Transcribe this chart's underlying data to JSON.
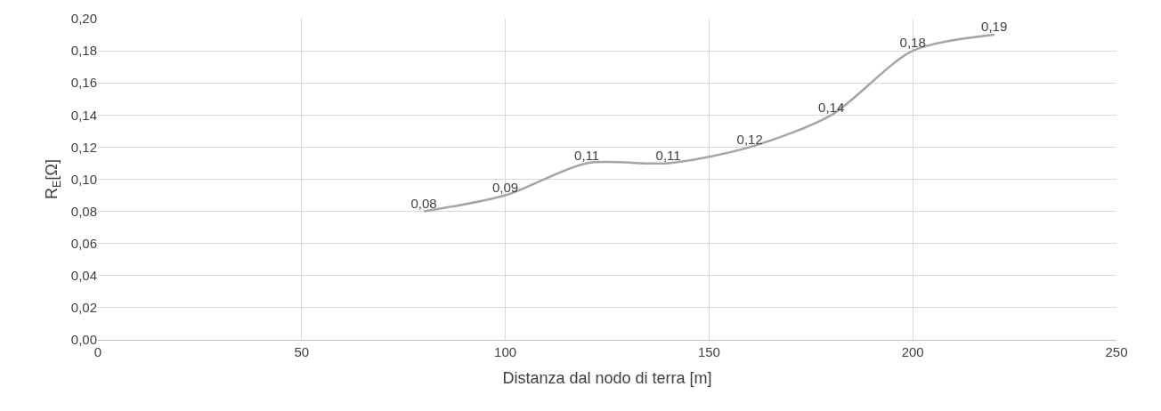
{
  "chart_data": {
    "type": "line",
    "xlabel": "Distanza dal nodo di terra [m]",
    "ylabel": "R$_{E}$[Ω]",
    "x": [
      80,
      100,
      120,
      140,
      160,
      180,
      200,
      220
    ],
    "series": [
      {
        "color": "#a5a5a5",
        "values": [
          0.08,
          0.09,
          0.11,
          0.11,
          0.12,
          0.14,
          0.18,
          0.19
        ],
        "value_labels": [
          "0,08",
          "0,09",
          "0,11",
          "0,11",
          "0,12",
          "0,14",
          "0,18",
          "0,19"
        ]
      }
    ],
    "xlim": [
      0,
      250
    ],
    "xticks": [
      0,
      50,
      100,
      150,
      200,
      250
    ],
    "ylim": [
      0,
      0.2
    ],
    "yticks": [
      {
        "value": 0,
        "label": "0,00"
      },
      {
        "value": 0.02,
        "label": "0,02"
      },
      {
        "value": 0.04,
        "label": "0,04"
      },
      {
        "value": 0.06,
        "label": "0,06"
      },
      {
        "value": 0.08,
        "label": "0,08"
      },
      {
        "value": 0.1,
        "label": "0,10"
      },
      {
        "value": 0.12,
        "label": "0,12"
      },
      {
        "value": 0.14,
        "label": "0,14"
      },
      {
        "value": 0.16,
        "label": "0,16"
      },
      {
        "value": 0.18,
        "label": "0,18"
      },
      {
        "value": 0.2,
        "label": "0,20"
      }
    ],
    "grid": true,
    "marker": "none",
    "line_style": "solid"
  }
}
